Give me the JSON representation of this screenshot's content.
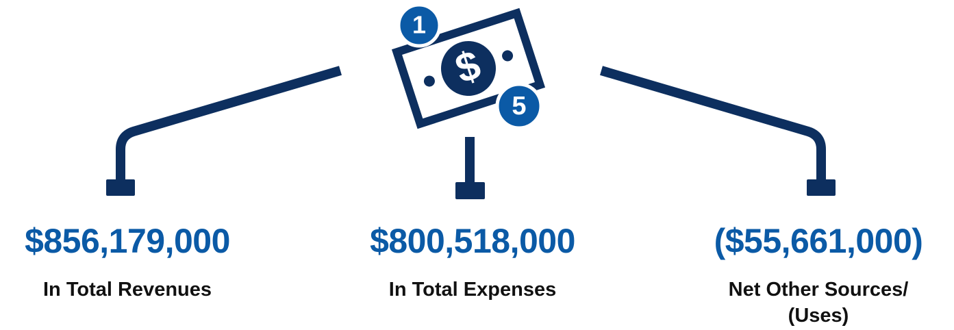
{
  "icon": {
    "coins": [
      "1",
      "5"
    ],
    "symbol": "$"
  },
  "items": [
    {
      "value": "$856,179,000",
      "label": "In Total Revenues"
    },
    {
      "value": "$800,518,000",
      "label": "In Total Expenses"
    },
    {
      "value": "($55,661,000)",
      "label": "Net Other Sources/ (Uses)"
    }
  ]
}
